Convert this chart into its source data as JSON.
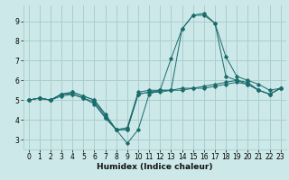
{
  "xlabel": "Humidex (Indice chaleur)",
  "ylabel": "",
  "bg_color": "#cce8e8",
  "grid_color": "#aacece",
  "line_color": "#1a6b6b",
  "x_values": [
    0,
    1,
    2,
    3,
    4,
    5,
    6,
    7,
    8,
    9,
    10,
    11,
    12,
    13,
    14,
    15,
    16,
    17,
    18,
    19,
    20,
    21,
    22,
    23
  ],
  "lines": [
    [
      5.0,
      5.1,
      5.0,
      5.3,
      5.4,
      5.2,
      5.0,
      4.3,
      3.5,
      3.6,
      5.4,
      5.5,
      5.5,
      7.1,
      8.6,
      9.3,
      9.3,
      8.9,
      7.2,
      6.2,
      6.0,
      5.8,
      5.5,
      5.6
    ],
    [
      5.0,
      5.1,
      5.0,
      5.3,
      5.4,
      5.2,
      5.0,
      4.2,
      3.5,
      2.8,
      3.5,
      5.3,
      5.5,
      5.5,
      8.6,
      9.3,
      9.4,
      8.9,
      6.2,
      6.0,
      5.8,
      5.5,
      5.3,
      5.6
    ],
    [
      5.0,
      5.1,
      5.0,
      5.3,
      5.3,
      5.1,
      4.8,
      4.1,
      3.5,
      3.5,
      5.3,
      5.4,
      5.5,
      5.5,
      5.6,
      5.6,
      5.7,
      5.8,
      5.9,
      6.0,
      5.9,
      5.5,
      5.3,
      5.6
    ],
    [
      5.0,
      5.1,
      5.0,
      5.2,
      5.3,
      5.1,
      4.9,
      4.1,
      3.5,
      3.5,
      5.3,
      5.4,
      5.4,
      5.5,
      5.5,
      5.6,
      5.6,
      5.7,
      5.8,
      5.9,
      5.8,
      5.5,
      5.3,
      5.6
    ]
  ],
  "yticks": [
    3,
    4,
    5,
    6,
    7,
    8,
    9
  ],
  "xticks": [
    0,
    1,
    2,
    3,
    4,
    5,
    6,
    7,
    8,
    9,
    10,
    11,
    12,
    13,
    14,
    15,
    16,
    17,
    18,
    19,
    20,
    21,
    22,
    23
  ],
  "ylim": [
    2.5,
    9.8
  ],
  "xlim": [
    -0.5,
    23.5
  ],
  "xlabel_fontsize": 6.5,
  "tick_fontsize": 5.5
}
